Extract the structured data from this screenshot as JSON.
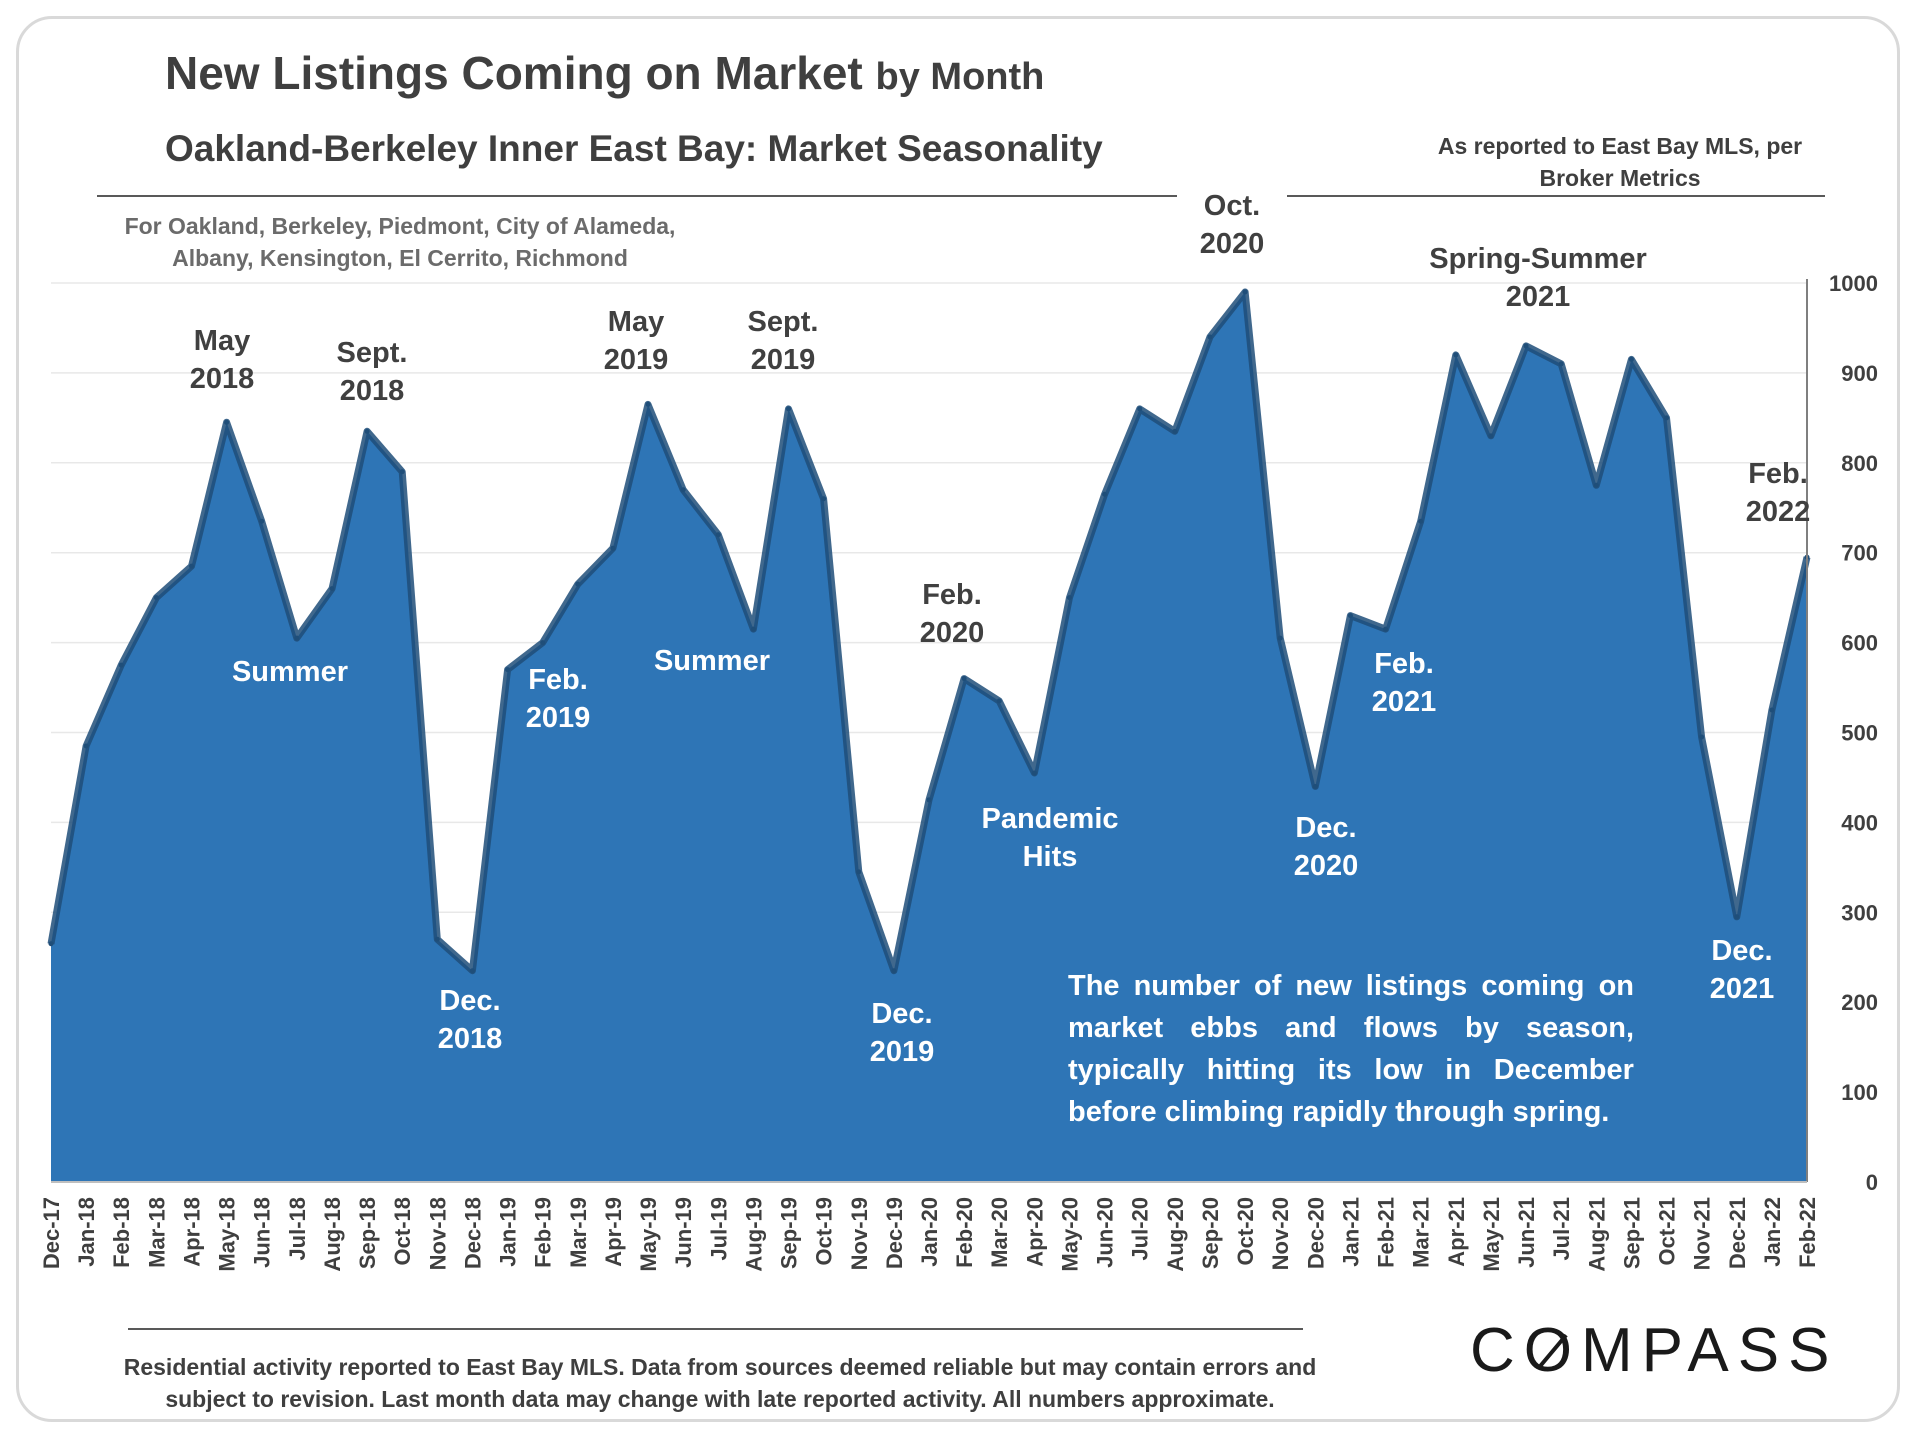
{
  "title": "New Listings Coming on Market",
  "title_suffix": "by Month",
  "subtitle": "Oakland-Berkeley Inner East Bay: Market Seasonality",
  "source_note": "As reported to East Bay MLS, per Broker Metrics",
  "region_note": "For Oakland, Berkeley, Piedmont, City of Alameda, Albany, Kensington, El Cerrito, Richmond",
  "footer_note": "Residential activity reported to East Bay MLS. Data from sources deemed reliable but may contain errors and subject to revision. Last month data may change with late reported activity. All numbers approximate.",
  "logo_text_before": "C",
  "logo_text_after": "MPASS",
  "colors": {
    "area_fill": "#2e75b6",
    "area_edge": "#1f4e79",
    "text_dark": "#404040",
    "text_on_fill": "#ffffff"
  },
  "chart_data": {
    "type": "area",
    "title": "New Listings Coming on Market by Month",
    "subtitle": "Oakland-Berkeley Inner East Bay: Market Seasonality",
    "x": [
      "Dec-17",
      "Jan-18",
      "Feb-18",
      "Mar-18",
      "Apr-18",
      "May-18",
      "Jun-18",
      "Jul-18",
      "Aug-18",
      "Sep-18",
      "Oct-18",
      "Nov-18",
      "Dec-18",
      "Jan-19",
      "Feb-19",
      "Mar-19",
      "Apr-19",
      "May-19",
      "Jun-19",
      "Jul-19",
      "Aug-19",
      "Sep-19",
      "Oct-19",
      "Nov-19",
      "Dec-19",
      "Jan-20",
      "Feb-20",
      "Mar-20",
      "Apr-20",
      "May-20",
      "Jun-20",
      "Jul-20",
      "Aug-20",
      "Sep-20",
      "Oct-20",
      "Nov-20",
      "Dec-20",
      "Jan-21",
      "Feb-21",
      "Mar-21",
      "Apr-21",
      "May-21",
      "Jun-21",
      "Jul-21",
      "Aug-21",
      "Sep-21",
      "Oct-21",
      "Nov-21",
      "Dec-21",
      "Jan-22",
      "Feb-22"
    ],
    "series": [
      {
        "name": "New Listings",
        "values": [
          265,
          485,
          575,
          650,
          685,
          845,
          735,
          605,
          660,
          835,
          790,
          270,
          235,
          570,
          600,
          665,
          705,
          865,
          770,
          720,
          615,
          860,
          760,
          345,
          235,
          425,
          560,
          535,
          455,
          650,
          765,
          860,
          835,
          940,
          990,
          605,
          440,
          630,
          615,
          735,
          920,
          830,
          930,
          910,
          775,
          915,
          850,
          495,
          295,
          525,
          695
        ]
      }
    ],
    "ylim": [
      0,
      1000
    ],
    "yticks": [
      0,
      100,
      200,
      300,
      400,
      500,
      600,
      700,
      800,
      900,
      1000
    ],
    "y_axis_side": "right",
    "grid": true,
    "annotations": [
      {
        "id": "may-2018",
        "lines": [
          "May",
          "2018"
        ],
        "month": "May-18",
        "style": "dark"
      },
      {
        "id": "sept-2018",
        "lines": [
          "Sept.",
          "2018"
        ],
        "month": "Sep-18",
        "style": "dark"
      },
      {
        "id": "summer-2018",
        "lines": [
          "Summer"
        ],
        "month": "Jul-18",
        "style": "light"
      },
      {
        "id": "dec-2018",
        "lines": [
          "Dec.",
          "2018"
        ],
        "month": "Dec-18",
        "style": "light"
      },
      {
        "id": "feb-2019",
        "lines": [
          "Feb.",
          "2019"
        ],
        "month": "Feb-19",
        "style": "light"
      },
      {
        "id": "may-2019",
        "lines": [
          "May",
          "2019"
        ],
        "month": "May-19",
        "style": "dark"
      },
      {
        "id": "sept-2019",
        "lines": [
          "Sept.",
          "2019"
        ],
        "month": "Sep-19",
        "style": "dark"
      },
      {
        "id": "summer-2019",
        "lines": [
          "Summer"
        ],
        "month": "Jul-19",
        "style": "light"
      },
      {
        "id": "dec-2019",
        "lines": [
          "Dec.",
          "2019"
        ],
        "month": "Dec-19",
        "style": "light"
      },
      {
        "id": "feb-2020",
        "lines": [
          "Feb.",
          "2020"
        ],
        "month": "Feb-20",
        "style": "dark"
      },
      {
        "id": "pandemic-hits",
        "lines": [
          "Pandemic",
          "Hits"
        ],
        "month": "Apr-20",
        "style": "light"
      },
      {
        "id": "oct-2020",
        "lines": [
          "Oct.",
          "2020"
        ],
        "month": "Oct-20",
        "style": "dark"
      },
      {
        "id": "dec-2020",
        "lines": [
          "Dec.",
          "2020"
        ],
        "month": "Dec-20",
        "style": "light"
      },
      {
        "id": "feb-2021",
        "lines": [
          "Feb.",
          "2021"
        ],
        "month": "Feb-21",
        "style": "light"
      },
      {
        "id": "spring-summer-2021",
        "lines": [
          "Spring-Summer",
          "2021"
        ],
        "month": "Jun-21",
        "style": "dark"
      },
      {
        "id": "dec-2021",
        "lines": [
          "Dec.",
          "2021"
        ],
        "month": "Dec-21",
        "style": "light"
      },
      {
        "id": "feb-2022",
        "lines": [
          "Feb.",
          "2022"
        ],
        "month": "Feb-22",
        "style": "dark"
      }
    ],
    "description_lines": [
      "The number of new listings coming on",
      "market ebbs and flows by season,",
      "typically hitting its low in December",
      "before climbing rapidly through spring."
    ]
  }
}
